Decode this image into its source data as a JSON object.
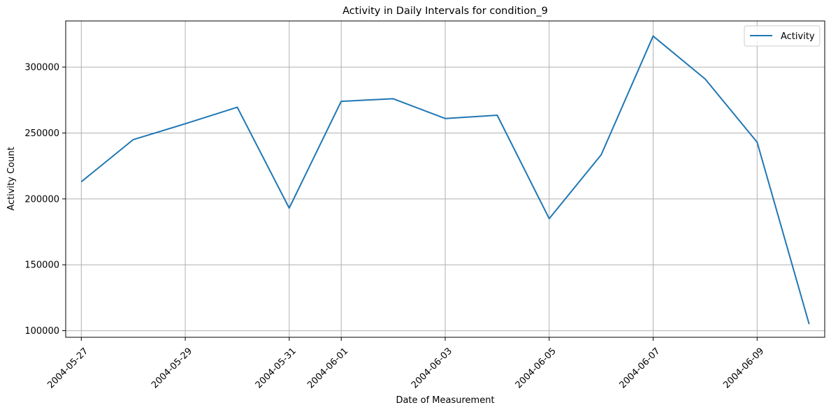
{
  "chart_data": {
    "type": "line",
    "title": "Activity in Daily Intervals for condition_9",
    "xlabel": "Date of Measurement",
    "ylabel": "Activity Count",
    "x_ticks": [
      "2004-05-27",
      "2004-05-29",
      "2004-05-31",
      "2004-06-01",
      "2004-06-03",
      "2004-06-05",
      "2004-06-07",
      "2004-06-09"
    ],
    "y_ticks": [
      100000,
      150000,
      200000,
      250000,
      300000
    ],
    "xlim": [
      "2004-05-26T16:48",
      "2004-06-10T07:12"
    ],
    "ylim": [
      95000,
      335000
    ],
    "grid": true,
    "legend_position": "top-right",
    "series": [
      {
        "name": "Activity",
        "color": "#1f77b4",
        "x": [
          "2004-05-27",
          "2004-05-28",
          "2004-05-29",
          "2004-05-30",
          "2004-05-31",
          "2004-06-01",
          "2004-06-02",
          "2004-06-03",
          "2004-06-04",
          "2004-06-05",
          "2004-06-06",
          "2004-06-07",
          "2004-06-08",
          "2004-06-09",
          "2004-06-10"
        ],
        "y": [
          213000,
          245000,
          257000,
          269500,
          193000,
          274000,
          276000,
          261000,
          263500,
          185000,
          233500,
          323500,
          291000,
          243000,
          105000
        ]
      }
    ]
  }
}
